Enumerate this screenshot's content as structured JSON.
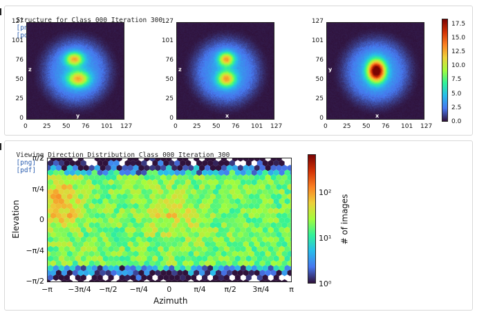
{
  "structure": {
    "title": "Structure for Class 000 Iteration 300",
    "link_png": "[png]",
    "link_pdf": "[pdf]",
    "plots": [
      {
        "axis_x_label": "y",
        "axis_y_label": "z",
        "peak": 9.5,
        "blobs": [
          [
            0.48,
            0.37,
            0.09,
            0.07
          ],
          [
            0.52,
            0.57,
            0.11,
            0.08
          ]
        ]
      },
      {
        "axis_x_label": "x",
        "axis_y_label": "z",
        "peak": 10.0,
        "blobs": [
          [
            0.5,
            0.37,
            0.08,
            0.07
          ],
          [
            0.5,
            0.57,
            0.09,
            0.08
          ]
        ]
      },
      {
        "axis_x_label": "x",
        "axis_y_label": "y",
        "peak": 17.5,
        "blobs": [
          [
            0.5,
            0.49,
            0.09,
            0.11
          ]
        ]
      }
    ],
    "xticks": [
      "0",
      "25",
      "50",
      "76",
      "101",
      "127"
    ],
    "yticks": [
      "127",
      "101",
      "76",
      "50",
      "25",
      "0"
    ],
    "colorbar": {
      "ticks": [
        "17.5",
        "15.0",
        "12.5",
        "10.0",
        "7.5",
        "5.0",
        "2.5",
        "0.0"
      ],
      "min": 0,
      "max": 18.5
    }
  },
  "viewing": {
    "title": "Viewing Direction Distribution Class 000 Iteration 300",
    "link_png": "[png]",
    "link_pdf": "[pdf]",
    "xlabel": "Azimuth",
    "ylabel": "Elevation",
    "xticks": [
      "−π",
      "−3π/4",
      "−π/2",
      "−π/4",
      "0",
      "π/4",
      "π/2",
      "3π/4",
      "π"
    ],
    "yticks": [
      "π/2",
      "π/4",
      "0",
      "−π/4",
      "−π/2"
    ],
    "colorbar_label": "# of images",
    "colorbar_ticks": [
      "10²",
      "10¹",
      "10⁰"
    ],
    "log_range": [
      0,
      2.7
    ]
  },
  "colors": {
    "border": "#d8d8d8",
    "link": "#2a5db0"
  }
}
